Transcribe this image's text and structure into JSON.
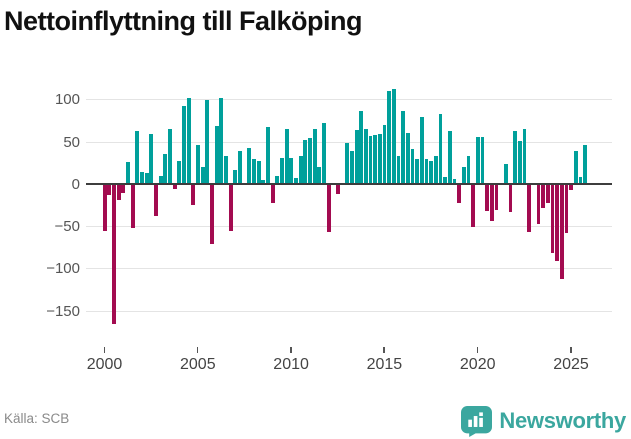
{
  "header": {
    "title": "Nettoinflyttning till Falköping"
  },
  "footer": {
    "source": "Källa: SCB",
    "brand": "Newsworthy"
  },
  "colors": {
    "positive": "#00A09B",
    "negative": "#A30B50",
    "grid": "#e4e4e4",
    "zero_line": "#3d3d3d",
    "axis_text": "#555555",
    "title_text": "#111111",
    "source_text": "#8a8a8a",
    "brand_teal": "#3BA79F"
  },
  "chart_data": {
    "type": "bar",
    "title": "Nettoinflyttning till Falköping",
    "x_start": "2000Q1",
    "frequency": "quarterly",
    "categories": [
      "2000Q1",
      "2000Q2",
      "2000Q3",
      "2000Q4",
      "2001Q1",
      "2001Q2",
      "2001Q3",
      "2001Q4",
      "2002Q1",
      "2002Q2",
      "2002Q3",
      "2002Q4",
      "2003Q1",
      "2003Q2",
      "2003Q3",
      "2003Q4",
      "2004Q1",
      "2004Q2",
      "2004Q3",
      "2004Q4",
      "2005Q1",
      "2005Q2",
      "2005Q3",
      "2005Q4",
      "2006Q1",
      "2006Q2",
      "2006Q3",
      "2006Q4",
      "2007Q1",
      "2007Q2",
      "2007Q3",
      "2007Q4",
      "2008Q1",
      "2008Q2",
      "2008Q3",
      "2008Q4",
      "2009Q1",
      "2009Q2",
      "2009Q3",
      "2009Q4",
      "2010Q1",
      "2010Q2",
      "2010Q3",
      "2010Q4",
      "2011Q1",
      "2011Q2",
      "2011Q3",
      "2011Q4",
      "2012Q1",
      "2012Q2",
      "2012Q3",
      "2012Q4",
      "2013Q1",
      "2013Q2",
      "2013Q3",
      "2013Q4",
      "2014Q1",
      "2014Q2",
      "2014Q3",
      "2014Q4",
      "2015Q1",
      "2015Q2",
      "2015Q3",
      "2015Q4",
      "2016Q1",
      "2016Q2",
      "2016Q3",
      "2016Q4",
      "2017Q1",
      "2017Q2",
      "2017Q3",
      "2017Q4",
      "2018Q1",
      "2018Q2",
      "2018Q3",
      "2018Q4",
      "2019Q1",
      "2019Q2",
      "2019Q3",
      "2019Q4",
      "2020Q1",
      "2020Q2",
      "2020Q3",
      "2020Q4",
      "2021Q1",
      "2021Q2",
      "2021Q3",
      "2021Q4",
      "2022Q1",
      "2022Q2",
      "2022Q3",
      "2022Q4",
      "2023Q1",
      "2023Q2",
      "2023Q3",
      "2023Q4",
      "2024Q1",
      "2024Q2",
      "2024Q3",
      "2024Q4",
      "2025Q1",
      "2025Q2",
      "2025Q3",
      "2025Q4"
    ],
    "values": [
      -55,
      -13,
      -165,
      -19,
      -10,
      26,
      -52,
      63,
      15,
      13,
      59,
      -37,
      10,
      36,
      66,
      -6,
      27,
      93,
      102,
      -25,
      46,
      20,
      100,
      -71,
      69,
      102,
      34,
      -55,
      17,
      39,
      0,
      43,
      30,
      28,
      5,
      68,
      -22,
      10,
      31,
      65,
      31,
      8,
      33,
      52,
      55,
      66,
      20,
      73,
      -56,
      0,
      -12,
      0,
      49,
      40,
      64,
      87,
      66,
      57,
      58,
      60,
      70,
      110,
      113,
      33,
      87,
      61,
      42,
      30,
      80,
      30,
      28,
      33,
      83,
      9,
      63,
      6,
      -22,
      20,
      33,
      -51,
      56,
      56,
      -32,
      -44,
      -30,
      0,
      24,
      -33,
      63,
      51,
      66,
      -57,
      0,
      -47,
      -28,
      -22,
      -81,
      -91,
      -112,
      -58,
      -7,
      39,
      9,
      46
    ],
    "y_ticks": [
      100,
      50,
      0,
      -50,
      -100,
      -150
    ],
    "y_tick_labels": [
      "100",
      "50",
      "0",
      "−50",
      "−100",
      "−150"
    ],
    "x_tick_years": [
      "2000",
      "2005",
      "2010",
      "2015",
      "2020",
      "2025"
    ],
    "ylim": [
      -175,
      125
    ],
    "grid": true,
    "legend": "none",
    "positive_color": "#00A09B",
    "negative_color": "#A30B50"
  }
}
